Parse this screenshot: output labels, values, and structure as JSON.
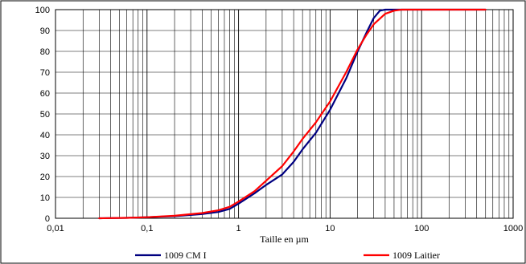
{
  "chart_data": {
    "type": "line",
    "title": "",
    "xlabel": "Taille en µm",
    "ylabel": "",
    "x_scale": "log",
    "xlim": [
      0.01,
      1000
    ],
    "ylim": [
      0,
      100
    ],
    "grid": true,
    "legend_position": "bottom",
    "x_tick_labels": [
      "0,01",
      "0,1",
      "1",
      "10",
      "100",
      "1000"
    ],
    "y_tick_labels": [
      "0",
      "10",
      "20",
      "30",
      "40",
      "50",
      "60",
      "70",
      "80",
      "90",
      "100"
    ],
    "series": [
      {
        "name": "1009 CM I",
        "color": "#000080",
        "points": [
          [
            0.03,
            0
          ],
          [
            0.06,
            0.2
          ],
          [
            0.1,
            0.5
          ],
          [
            0.2,
            1.0
          ],
          [
            0.4,
            2.0
          ],
          [
            0.6,
            3.0
          ],
          [
            0.8,
            4.5
          ],
          [
            1,
            7
          ],
          [
            1.5,
            12
          ],
          [
            2,
            16
          ],
          [
            3,
            21
          ],
          [
            4,
            27
          ],
          [
            5,
            33
          ],
          [
            7,
            41
          ],
          [
            10,
            52
          ],
          [
            15,
            67
          ],
          [
            20,
            80
          ],
          [
            25,
            89
          ],
          [
            30,
            96
          ],
          [
            35,
            99.5
          ],
          [
            40,
            100
          ],
          [
            60,
            100
          ],
          [
            100,
            100
          ],
          [
            200,
            100
          ],
          [
            500,
            100
          ]
        ]
      },
      {
        "name": "1009 Laitier",
        "color": "#ff0000",
        "points": [
          [
            0.03,
            0
          ],
          [
            0.06,
            0.2
          ],
          [
            0.1,
            0.5
          ],
          [
            0.2,
            1.2
          ],
          [
            0.4,
            2.5
          ],
          [
            0.6,
            3.8
          ],
          [
            0.8,
            5.5
          ],
          [
            1,
            8
          ],
          [
            1.5,
            13
          ],
          [
            2,
            18
          ],
          [
            3,
            25
          ],
          [
            4,
            32
          ],
          [
            5,
            38
          ],
          [
            7,
            46
          ],
          [
            10,
            56
          ],
          [
            15,
            70
          ],
          [
            20,
            81
          ],
          [
            25,
            88
          ],
          [
            30,
            93
          ],
          [
            40,
            98
          ],
          [
            50,
            99.5
          ],
          [
            60,
            100
          ],
          [
            100,
            100
          ],
          [
            200,
            100
          ],
          [
            500,
            100
          ]
        ]
      }
    ]
  }
}
